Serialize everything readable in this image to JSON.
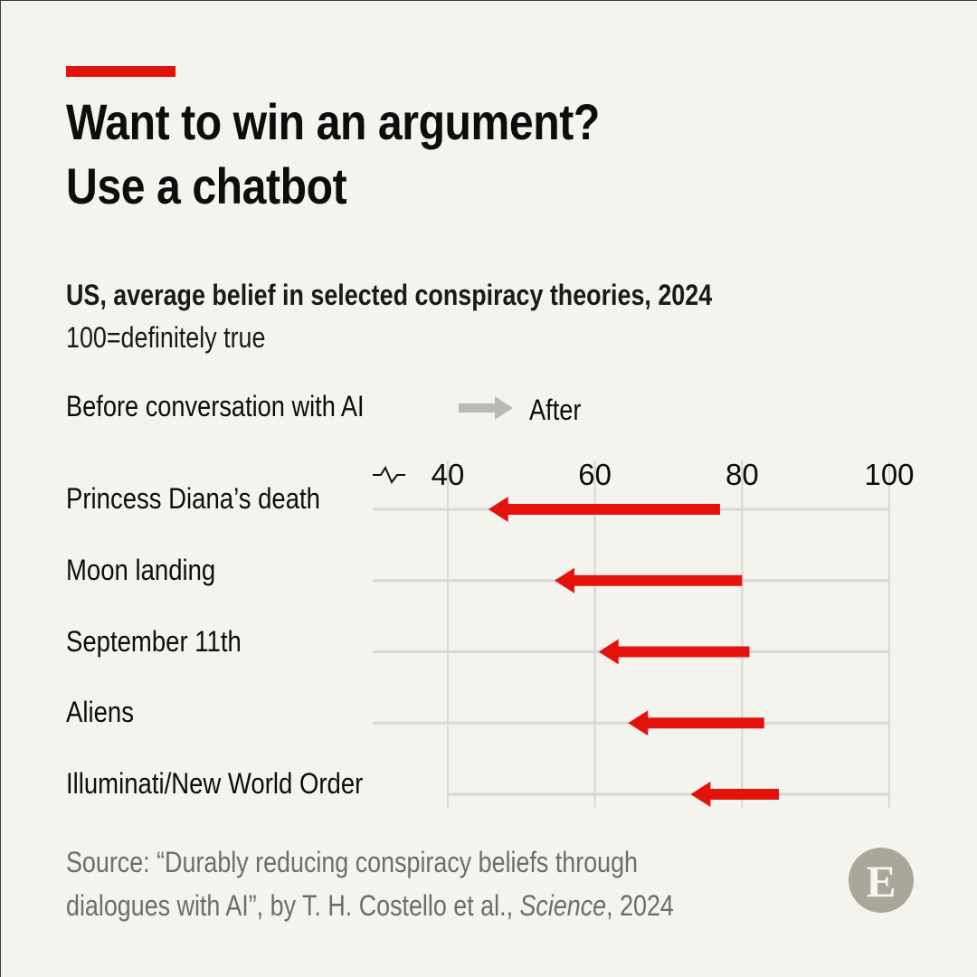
{
  "header": {
    "accent_color": "#e3120b",
    "title_line_1": "Want to win an argument?",
    "title_line_2": "Use a chatbot",
    "subtitle": "US, average belief in selected conspiracy theories, 2024",
    "unit_note": "100=definitely true"
  },
  "legend": {
    "before_label": "Before conversation with AI",
    "after_label": "After",
    "arrow_color": "#b9b9b6"
  },
  "chart_data": {
    "type": "arrow",
    "title": "US, average belief in selected conspiracy theories, 2024",
    "subtitle": "100=definitely true",
    "xlabel": "",
    "ylabel": "",
    "xlim": [
      40,
      100
    ],
    "axis_break": true,
    "x_ticks": [
      40,
      60,
      80,
      100
    ],
    "x_tick_labels": [
      "40",
      "60",
      "80",
      "100"
    ],
    "grid": true,
    "series_color": "#e3120b",
    "categories": [
      "Princess Diana’s death",
      "Moon landing",
      "September 11th",
      "Aliens",
      "Illuminati/New World Order"
    ],
    "series": [
      {
        "name": "Before conversation with AI",
        "values": [
          77,
          80,
          81,
          83,
          85
        ]
      },
      {
        "name": "After",
        "values": [
          45.5,
          54.5,
          60.5,
          64.5,
          73
        ]
      }
    ]
  },
  "footer": {
    "source_line_1": "Source: “Durably reducing conspiracy beliefs through",
    "source_line_2a": "dialogues with AI”, by T. H. Costello et al., ",
    "source_line_2_italic": "Science",
    "source_line_2b": ", 2024",
    "logo_letter": "E",
    "logo_color": "#a9a69a"
  }
}
